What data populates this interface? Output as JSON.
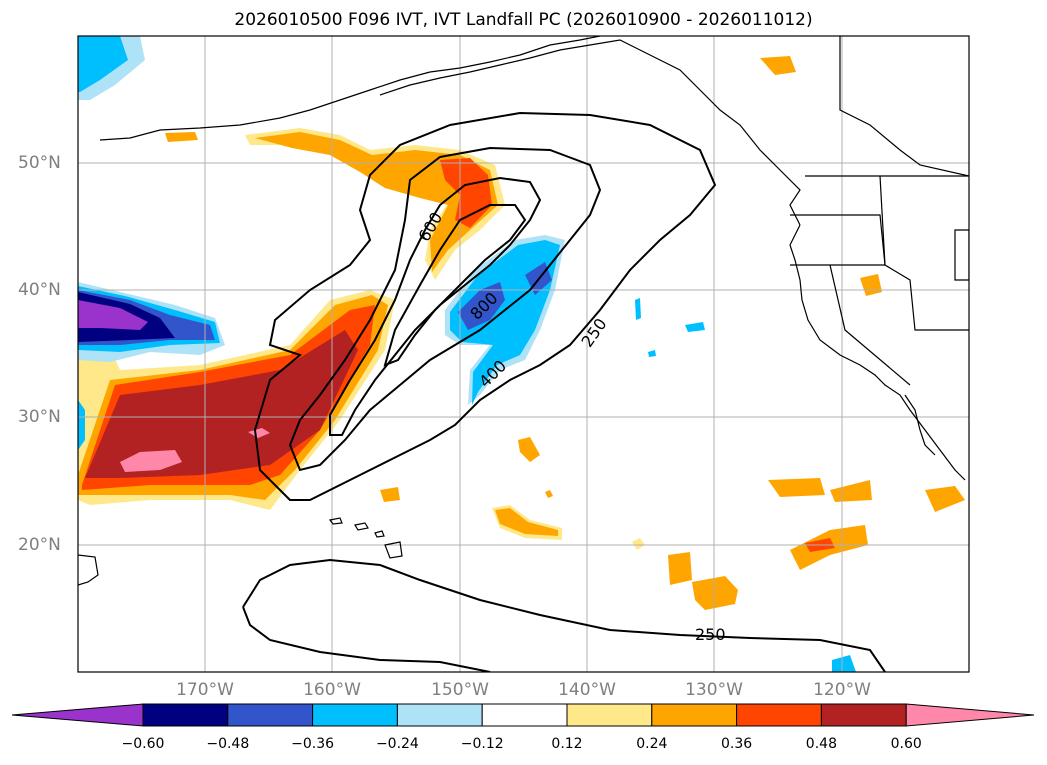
{
  "title": "2026010500 F096 IVT, IVT Landfall PC (2026010900 - 2026011012)",
  "lon_labels": [
    "170°W",
    "160°W",
    "150°W",
    "140°W",
    "130°W",
    "120°W"
  ],
  "lat_labels": [
    "50°N",
    "40°N",
    "30°N",
    "20°N"
  ],
  "contour_labels": [
    "600",
    "800",
    "400",
    "250",
    "250"
  ],
  "colorbar": {
    "ticks": [
      "−0.60",
      "−0.48",
      "−0.36",
      "−0.24",
      "−0.12",
      "0.12",
      "0.24",
      "0.36",
      "0.48",
      "0.60"
    ],
    "colors": [
      "#9933cc",
      "#000080",
      "#3355cc",
      "#00bfff",
      "#aee3f7",
      "#ffffff",
      "#ffe88a",
      "#ffa500",
      "#ff4500",
      "#b22222",
      "#ff88aa"
    ]
  },
  "chart_data": {
    "type": "map",
    "projection": "equirectangular",
    "lon_range": [
      -180,
      -110
    ],
    "lat_range": [
      10,
      60
    ],
    "gridlines": true,
    "shaded_field": "IVT Landfall PC",
    "contour_field": "IVT",
    "contour_levels": [
      250,
      400,
      600,
      800
    ],
    "colorbar_levels": [
      -0.6,
      -0.48,
      -0.36,
      -0.24,
      -0.12,
      0.12,
      0.24,
      0.36,
      0.48,
      0.6
    ]
  }
}
